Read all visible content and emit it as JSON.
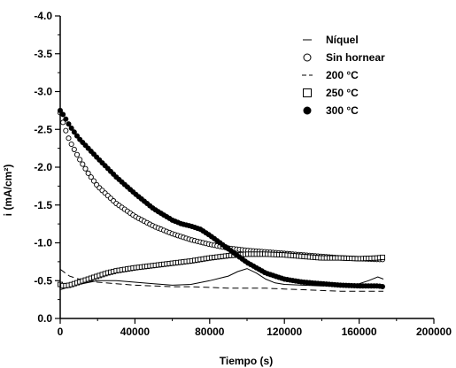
{
  "chart_data": {
    "type": "scatter",
    "xlabel": "Tiempo (s)",
    "ylabel": "i (mA/cm²)",
    "xlim": [
      0,
      200000
    ],
    "ylim": [
      -4.0,
      0.0
    ],
    "y_axis_inverted": true,
    "x_ticks": [
      0,
      40000,
      80000,
      120000,
      160000,
      200000
    ],
    "x_tick_labels": [
      "0",
      "40000",
      "80000",
      "120000",
      "160000",
      "200000"
    ],
    "y_ticks": [
      -4.0,
      -3.5,
      -3.0,
      -2.5,
      -2.0,
      -1.5,
      -1.0,
      -0.5,
      0.0
    ],
    "y_tick_labels": [
      "-4.0",
      "-3.5",
      "-3.0",
      "-2.5",
      "-2.0",
      "-1.5",
      "-1.0",
      "-0.5",
      "0.0"
    ],
    "grid": false,
    "legend_position": "top-right",
    "series": [
      {
        "name": "Níquel",
        "marker": "solid-line",
        "x": [
          0,
          5000,
          10000,
          20000,
          30000,
          40000,
          50000,
          60000,
          70000,
          80000,
          90000,
          95000,
          100000,
          105000,
          110000,
          115000,
          120000,
          130000,
          140000,
          150000,
          160000,
          165000,
          170000,
          173000
        ],
        "y": [
          -0.38,
          -0.42,
          -0.45,
          -0.5,
          -0.5,
          -0.48,
          -0.46,
          -0.44,
          -0.45,
          -0.5,
          -0.56,
          -0.62,
          -0.66,
          -0.6,
          -0.52,
          -0.47,
          -0.45,
          -0.44,
          -0.43,
          -0.44,
          -0.46,
          -0.5,
          -0.55,
          -0.52
        ]
      },
      {
        "name": "Sin hornear",
        "marker": "open-circle",
        "x": [
          0,
          2000,
          5000,
          10000,
          15000,
          20000,
          30000,
          40000,
          50000,
          60000,
          70000,
          80000,
          90000,
          100000,
          110000,
          120000,
          130000,
          140000,
          150000,
          160000,
          170000,
          173000
        ],
        "y": [
          -2.72,
          -2.55,
          -2.35,
          -2.12,
          -1.92,
          -1.75,
          -1.52,
          -1.35,
          -1.22,
          -1.12,
          -1.04,
          -0.98,
          -0.93,
          -0.9,
          -0.88,
          -0.86,
          -0.84,
          -0.82,
          -0.8,
          -0.79,
          -0.78,
          -0.78
        ]
      },
      {
        "name": "200 °C",
        "marker": "dashed-line",
        "x": [
          0,
          5000,
          10000,
          20000,
          30000,
          40000,
          50000,
          60000,
          70000,
          80000,
          90000,
          100000,
          110000,
          120000,
          130000,
          140000,
          150000,
          160000,
          170000,
          173000
        ],
        "y": [
          -0.65,
          -0.56,
          -0.52,
          -0.48,
          -0.46,
          -0.44,
          -0.43,
          -0.42,
          -0.42,
          -0.41,
          -0.4,
          -0.4,
          -0.4,
          -0.39,
          -0.38,
          -0.37,
          -0.36,
          -0.36,
          -0.36,
          -0.36
        ]
      },
      {
        "name": "250 °C",
        "marker": "open-square",
        "x": [
          0,
          2000,
          5000,
          10000,
          15000,
          20000,
          25000,
          30000,
          35000,
          40000,
          50000,
          60000,
          70000,
          80000,
          90000,
          100000,
          110000,
          120000,
          130000,
          140000,
          150000,
          160000,
          170000,
          173000
        ],
        "y": [
          -0.45,
          -0.43,
          -0.44,
          -0.48,
          -0.52,
          -0.56,
          -0.6,
          -0.63,
          -0.65,
          -0.67,
          -0.7,
          -0.73,
          -0.76,
          -0.8,
          -0.83,
          -0.85,
          -0.85,
          -0.84,
          -0.82,
          -0.8,
          -0.8,
          -0.79,
          -0.8,
          -0.81
        ]
      },
      {
        "name": "300 °C",
        "marker": "filled-circle",
        "x": [
          0,
          2000,
          5000,
          10000,
          15000,
          20000,
          30000,
          40000,
          50000,
          60000,
          65000,
          70000,
          75000,
          80000,
          90000,
          100000,
          110000,
          120000,
          130000,
          140000,
          150000,
          160000,
          170000,
          173000
        ],
        "y": [
          -2.75,
          -2.68,
          -2.55,
          -2.38,
          -2.25,
          -2.12,
          -1.87,
          -1.65,
          -1.45,
          -1.3,
          -1.25,
          -1.22,
          -1.18,
          -1.1,
          -0.92,
          -0.74,
          -0.6,
          -0.52,
          -0.48,
          -0.46,
          -0.44,
          -0.43,
          -0.43,
          -0.42
        ]
      }
    ]
  },
  "legend": {
    "items": [
      "Níquel",
      "Sin hornear",
      "200 °C",
      "250 °C",
      "300 °C"
    ]
  }
}
